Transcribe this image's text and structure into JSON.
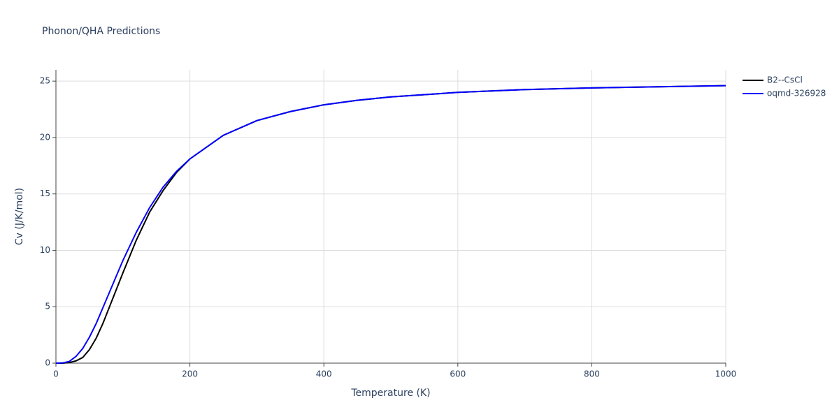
{
  "chart_data": {
    "type": "line",
    "title": "Phonon/QHA Predictions",
    "x_label": "Temperature (K)",
    "y_label": "Cv (J/K/mol)",
    "x": [
      0,
      10,
      20,
      30,
      40,
      50,
      60,
      70,
      80,
      90,
      100,
      120,
      140,
      160,
      180,
      200,
      250,
      300,
      350,
      400,
      450,
      500,
      600,
      700,
      800,
      900,
      1000
    ],
    "series": [
      {
        "name": "B2--CsCl",
        "color": "#000000",
        "values": [
          0,
          0,
          0.05,
          0.2,
          0.5,
          1.2,
          2.2,
          3.5,
          5.0,
          6.5,
          8.0,
          10.9,
          13.4,
          15.3,
          16.9,
          18.1,
          20.2,
          21.5,
          22.3,
          22.9,
          23.3,
          23.6,
          24.0,
          24.25,
          24.4,
          24.5,
          24.6
        ]
      },
      {
        "name": "oqmd-326928",
        "color": "#0000ff",
        "values": [
          0,
          0.02,
          0.15,
          0.6,
          1.3,
          2.3,
          3.5,
          4.9,
          6.3,
          7.7,
          9.1,
          11.6,
          13.8,
          15.6,
          17.0,
          18.1,
          20.2,
          21.5,
          22.3,
          22.9,
          23.3,
          23.6,
          24.0,
          24.25,
          24.4,
          24.5,
          24.6
        ]
      }
    ],
    "xlim": [
      0,
      1000
    ],
    "xticks": [
      0,
      200,
      400,
      600,
      800,
      1000
    ],
    "ylim": [
      0,
      26
    ],
    "yticks": [
      0,
      5,
      10,
      15,
      20,
      25
    ],
    "grid": true,
    "legend": "right"
  }
}
